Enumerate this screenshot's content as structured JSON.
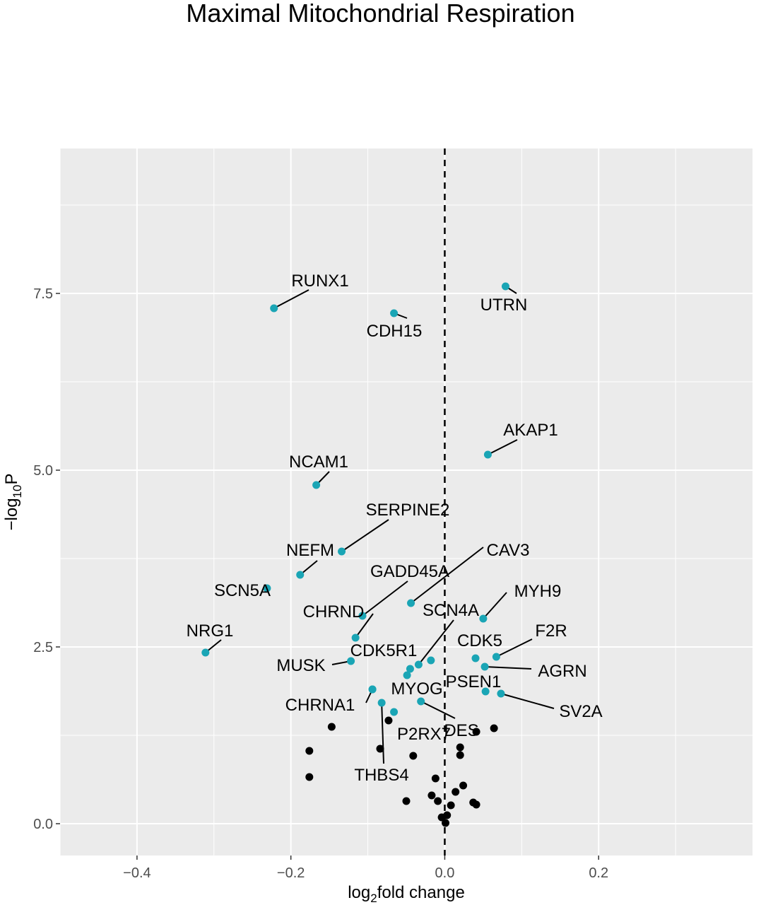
{
  "chart_data": {
    "type": "scatter",
    "title": "Maximal Mitochondrial Respiration",
    "xlabel_parts": [
      "log",
      "2",
      "fold change"
    ],
    "ylabel_parts": [
      "−log",
      "10",
      "P"
    ],
    "xlim": [
      -0.5,
      0.4
    ],
    "ylim": [
      -0.45,
      9.55
    ],
    "x_ticks": [
      -0.4,
      -0.2,
      0.0,
      0.2
    ],
    "x_tick_labels": [
      "−0.4",
      "−0.2",
      "0.0",
      "0.2"
    ],
    "y_ticks": [
      0.0,
      2.5,
      5.0,
      7.5
    ],
    "y_tick_labels": [
      "0.0",
      "2.5",
      "5.0",
      "7.5"
    ],
    "vline_x": 0.0,
    "grid": true,
    "colors": {
      "highlight": "#1aa5b5",
      "other": "#000000",
      "panel": "#ebebeb",
      "grid": "#ffffff"
    },
    "highlighted_points": [
      {
        "label": "RUNX1",
        "x": -0.222,
        "y": 7.29
      },
      {
        "label": "CDH15",
        "x": -0.066,
        "y": 7.22
      },
      {
        "label": "UTRN",
        "x": 0.079,
        "y": 7.6
      },
      {
        "label": "AKAP1",
        "x": 0.056,
        "y": 5.22
      },
      {
        "label": "NCAM1",
        "x": -0.167,
        "y": 4.79
      },
      {
        "label": "SERPINE2",
        "x": -0.134,
        "y": 3.85
      },
      {
        "label": "NEFM",
        "x": -0.188,
        "y": 3.52
      },
      {
        "label": "SCN5A",
        "x": -0.231,
        "y": 3.33
      },
      {
        "label": "CAV3",
        "x": -0.044,
        "y": 3.12
      },
      {
        "label": "GADD45A",
        "x": -0.107,
        "y": 2.94
      },
      {
        "label": "MYH9",
        "x": 0.05,
        "y": 2.9
      },
      {
        "label": "CHRND",
        "x": -0.116,
        "y": 2.63
      },
      {
        "label": "NRG1",
        "x": -0.311,
        "y": 2.42
      },
      {
        "label": "F2R",
        "x": 0.067,
        "y": 2.36
      },
      {
        "label": "CDK5",
        "x": 0.04,
        "y": 2.34
      },
      {
        "label": "CDK5R1",
        "x": -0.018,
        "y": 2.31
      },
      {
        "label": "MUSK",
        "x": -0.122,
        "y": 2.3
      },
      {
        "label": "SCN4A",
        "x": -0.034,
        "y": 2.25
      },
      {
        "label": "AGRN",
        "x": 0.052,
        "y": 2.22
      },
      {
        "label": "",
        "x": -0.045,
        "y": 2.19
      },
      {
        "label": "",
        "x": -0.049,
        "y": 2.1
      },
      {
        "label": "PSEN1",
        "x": 0.053,
        "y": 1.87
      },
      {
        "label": "SV2A",
        "x": 0.073,
        "y": 1.84
      },
      {
        "label": "DES",
        "x": -0.031,
        "y": 1.73
      },
      {
        "label": "THBS4",
        "x": -0.082,
        "y": 1.71
      },
      {
        "label": "P2RX7",
        "x": -0.066,
        "y": 1.58
      },
      {
        "label": "CHRNA1",
        "x": -0.094,
        "y": 1.9
      },
      {
        "label": "MYOG",
        "x": -0.094,
        "y": 1.9
      }
    ],
    "other_points": [
      {
        "x": -0.073,
        "y": 1.46
      },
      {
        "x": -0.147,
        "y": 1.37
      },
      {
        "x": 0.064,
        "y": 1.35
      },
      {
        "x": 0.041,
        "y": 1.3
      },
      {
        "x": -0.176,
        "y": 1.03
      },
      {
        "x": -0.084,
        "y": 1.06
      },
      {
        "x": 0.02,
        "y": 1.08
      },
      {
        "x": 0.02,
        "y": 0.97
      },
      {
        "x": -0.041,
        "y": 0.96
      },
      {
        "x": -0.176,
        "y": 0.66
      },
      {
        "x": -0.012,
        "y": 0.64
      },
      {
        "x": 0.024,
        "y": 0.54
      },
      {
        "x": 0.014,
        "y": 0.45
      },
      {
        "x": -0.017,
        "y": 0.4
      },
      {
        "x": -0.05,
        "y": 0.32
      },
      {
        "x": -0.009,
        "y": 0.32
      },
      {
        "x": 0.037,
        "y": 0.3
      },
      {
        "x": 0.041,
        "y": 0.27
      },
      {
        "x": 0.008,
        "y": 0.26
      },
      {
        "x": -0.004,
        "y": 0.09
      },
      {
        "x": 0.003,
        "y": 0.12
      },
      {
        "x": 0.001,
        "y": 0.01
      }
    ]
  }
}
